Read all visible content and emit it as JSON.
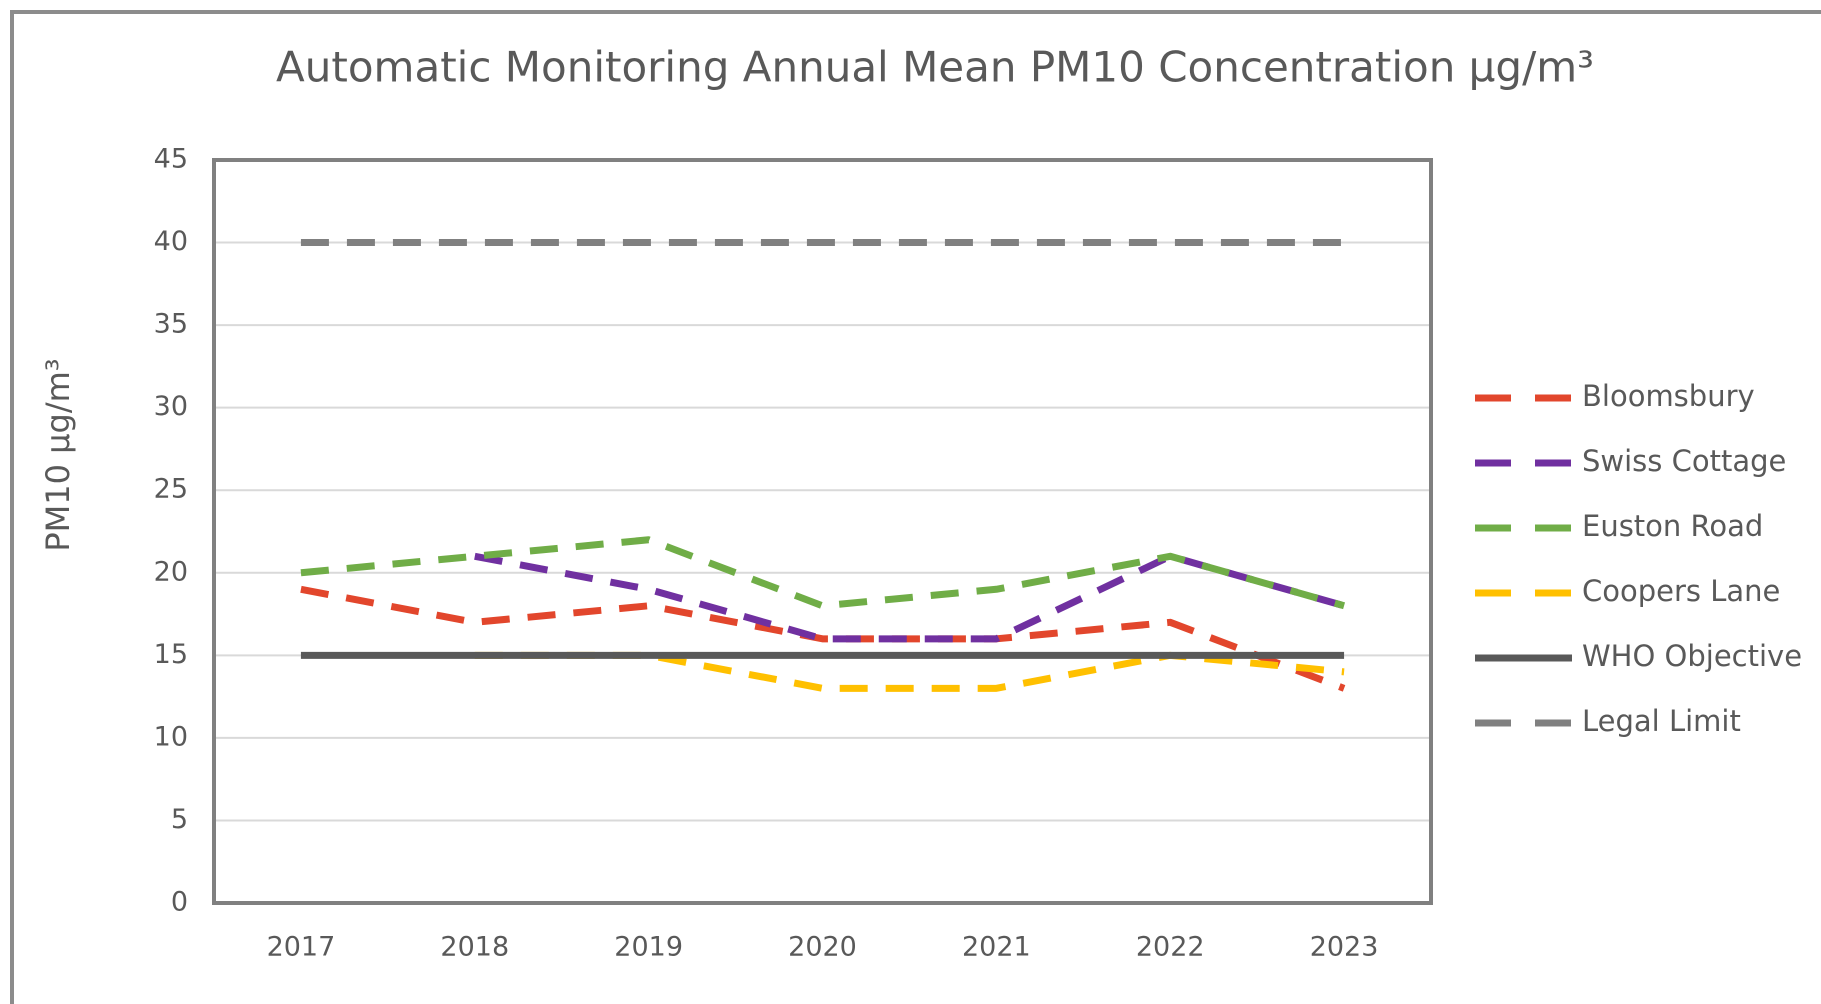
{
  "chart_data": {
    "type": "line",
    "title": "Automatic Monitoring Annual Mean PM10 Concentration  µg/m³",
    "y_label": "PM10 µg/m³",
    "categories": [
      "2017",
      "2018",
      "2019",
      "2020",
      "2021",
      "2022",
      "2023"
    ],
    "series": [
      {
        "name": "Bloomsbury",
        "color": "#e2462c",
        "dashed": true,
        "values": [
          19,
          17,
          18,
          16,
          16,
          17,
          13
        ]
      },
      {
        "name": "Swiss Cottage",
        "color": "#7030a0",
        "dashed": true,
        "values": [
          null,
          21,
          19,
          16,
          16,
          21,
          18
        ]
      },
      {
        "name": "Euston Road",
        "color": "#70ad47",
        "dashed": true,
        "values": [
          20,
          21,
          22,
          18,
          19,
          21,
          18
        ]
      },
      {
        "name": "Coopers Lane",
        "color": "#ffc000",
        "dashed": true,
        "values": [
          null,
          15,
          15,
          13,
          13,
          15,
          14
        ]
      },
      {
        "name": "WHO Objective",
        "color": "#595959",
        "dashed": false,
        "values": [
          15,
          15,
          15,
          15,
          15,
          15,
          15
        ]
      },
      {
        "name": "Legal Limit",
        "color": "#808080",
        "dashed": true,
        "values": [
          40,
          40,
          40,
          40,
          40,
          40,
          40
        ]
      }
    ],
    "ylim": [
      0,
      45
    ],
    "yticks": [
      0,
      5,
      10,
      15,
      20,
      25,
      30,
      35,
      40,
      45
    ],
    "grid": true,
    "legend": "right"
  }
}
